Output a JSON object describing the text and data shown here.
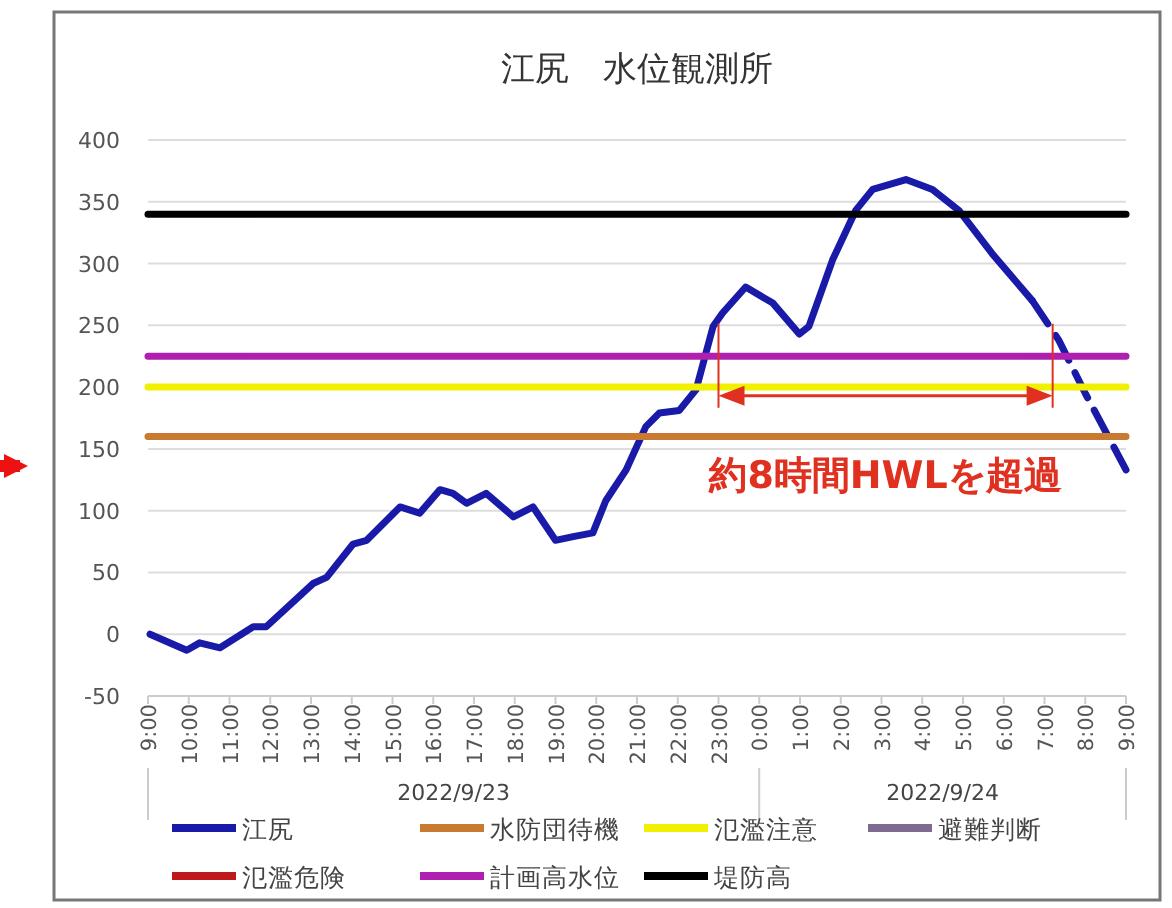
{
  "chart_data": {
    "type": "line",
    "title": "江尻　水位観測所",
    "x": [
      "2022-09-23T09:03",
      "2022-09-23T09:57",
      "2022-09-23T10:16",
      "2022-09-23T10:46",
      "2022-09-23T11:35",
      "2022-09-23T11:54",
      "2022-09-23T13:03",
      "2022-09-23T13:23",
      "2022-09-23T14:02",
      "2022-09-23T14:22",
      "2022-09-23T15:11",
      "2022-09-23T15:40",
      "2022-09-23T16:10",
      "2022-09-23T16:29",
      "2022-09-23T16:49",
      "2022-09-23T17:18",
      "2022-09-23T17:58",
      "2022-09-23T18:27",
      "2022-09-23T19:00",
      "2022-09-23T19:26",
      "2022-09-23T19:55",
      "2022-09-23T20:14",
      "2022-09-23T20:44",
      "2022-09-23T21:13",
      "2022-09-23T21:33",
      "2022-09-23T22:02",
      "2022-09-23T22:27",
      "2022-09-23T22:52",
      "2022-09-23T23:06",
      "2022-09-23T23:40",
      "2022-09-24T00:20",
      "2022-09-24T00:59",
      "2022-09-24T01:13",
      "2022-09-24T01:48",
      "2022-09-24T02:22",
      "2022-09-24T02:47",
      "2022-09-24T03:36",
      "2022-09-24T04:15",
      "2022-09-24T04:54",
      "2022-09-24T05:43",
      "2022-09-24T06:42"
    ],
    "series": [
      {
        "name": "江尻",
        "color": "#1a1aa8",
        "values": [
          0,
          -13,
          -7,
          -11,
          6,
          6,
          41,
          46,
          73,
          76,
          103,
          98,
          117,
          114,
          106,
          114,
          95,
          103,
          76,
          79,
          82,
          108,
          133,
          168,
          179,
          181,
          198,
          249,
          260,
          281,
          268,
          243,
          249,
          303,
          343,
          360,
          368,
          360,
          343,
          308,
          270
        ]
      },
      {
        "color": "#1a1aa8",
        "line_style": "dashed",
        "x": [
          "2022-09-24T06:42",
          "2022-09-24T07:21",
          "2022-09-24T08:00",
          "2022-09-24T09:00"
        ],
        "values": [
          270,
          238,
          195,
          133
        ]
      },
      {
        "name": "水防団待機",
        "color": "#c87a30",
        "x": [
          "2022-09-23T09:00",
          "2022-09-24T09:00"
        ],
        "values": [
          160,
          160
        ]
      },
      {
        "name": "氾濫注意",
        "color": "#f0f000",
        "x": [
          "2022-09-23T09:00",
          "2022-09-24T09:00"
        ],
        "values": [
          200,
          200
        ]
      },
      {
        "name": "避難判断",
        "color": "#7f6a90",
        "values": [
          null,
          null,
          null,
          null,
          null,
          null,
          null,
          null,
          null,
          null,
          null,
          null,
          null,
          null,
          null,
          null,
          null,
          null,
          null,
          null,
          null,
          null,
          null,
          null,
          null,
          null,
          null,
          null,
          null,
          null,
          null,
          null,
          null,
          null,
          null,
          null,
          null,
          null,
          null,
          null,
          null
        ]
      },
      {
        "name": "氾濫危険",
        "color": "#c01818",
        "values": [
          null,
          null,
          null,
          null,
          null,
          null,
          null,
          null,
          null,
          null,
          null,
          null,
          null,
          null,
          null,
          null,
          null,
          null,
          null,
          null,
          null,
          null,
          null,
          null,
          null,
          null,
          null,
          null,
          null,
          null,
          null,
          null,
          null,
          null,
          null,
          null,
          null,
          null,
          null,
          null,
          null
        ]
      },
      {
        "name": "計画高水位",
        "color": "#b020b0",
        "x": [
          "2022-09-23T09:00",
          "2022-09-24T09:00"
        ],
        "values": [
          225,
          225
        ]
      },
      {
        "name": "堤防高",
        "color": "#000000",
        "x": [
          "2022-09-23T09:00",
          "2022-09-24T09:00"
        ],
        "values": [
          340,
          340
        ]
      }
    ],
    "xlim": [
      "2022-09-23T09:00",
      "2022-09-24T09:00"
    ],
    "xticks": [
      {
        "value": "2022-09-23T09:00",
        "label": "9:00"
      },
      {
        "value": "2022-09-23T10:00",
        "label": "10:00"
      },
      {
        "value": "2022-09-23T11:00",
        "label": "11:00"
      },
      {
        "value": "2022-09-23T12:00",
        "label": "12:00"
      },
      {
        "value": "2022-09-23T13:00",
        "label": "13:00"
      },
      {
        "value": "2022-09-23T14:00",
        "label": "14:00"
      },
      {
        "value": "2022-09-23T15:00",
        "label": "15:00"
      },
      {
        "value": "2022-09-23T16:00",
        "label": "16:00"
      },
      {
        "value": "2022-09-23T17:00",
        "label": "17:00"
      },
      {
        "value": "2022-09-23T18:00",
        "label": "18:00"
      },
      {
        "value": "2022-09-23T19:00",
        "label": "19:00"
      },
      {
        "value": "2022-09-23T20:00",
        "label": "20:00"
      },
      {
        "value": "2022-09-23T21:00",
        "label": "21:00"
      },
      {
        "value": "2022-09-23T22:00",
        "label": "22:00"
      },
      {
        "value": "2022-09-23T23:00",
        "label": "23:00"
      },
      {
        "value": "2022-09-24T00:00",
        "label": "0:00"
      },
      {
        "value": "2022-09-24T01:00",
        "label": "1:00"
      },
      {
        "value": "2022-09-24T02:00",
        "label": "2:00"
      },
      {
        "value": "2022-09-24T03:00",
        "label": "3:00"
      },
      {
        "value": "2022-09-24T04:00",
        "label": "4:00"
      },
      {
        "value": "2022-09-24T05:00",
        "label": "5:00"
      },
      {
        "value": "2022-09-24T06:00",
        "label": "6:00"
      },
      {
        "value": "2022-09-24T07:00",
        "label": "7:00"
      },
      {
        "value": "2022-09-24T08:00",
        "label": "8:00"
      },
      {
        "value": "2022-09-24T09:00",
        "label": "9:00"
      }
    ],
    "ylim": [
      -50,
      400
    ],
    "yticks": [
      -50,
      0,
      50,
      100,
      150,
      200,
      250,
      300,
      350,
      400
    ],
    "grid": "y",
    "legend": "bottom",
    "marker": "none",
    "line_style": "solid",
    "ref_lines": [
      {
        "axis": "x",
        "value": "2022-09-23T23:00",
        "color": "#e03020"
      },
      {
        "axis": "x",
        "value": "2022-09-24T07:12",
        "color": "#e03020"
      }
    ],
    "annotations": [
      {
        "text": "約8時間HWLを超過",
        "x": "2022-09-24T03:06",
        "y": 193
      },
      "2022/9/23",
      "2022/9/24"
    ]
  }
}
